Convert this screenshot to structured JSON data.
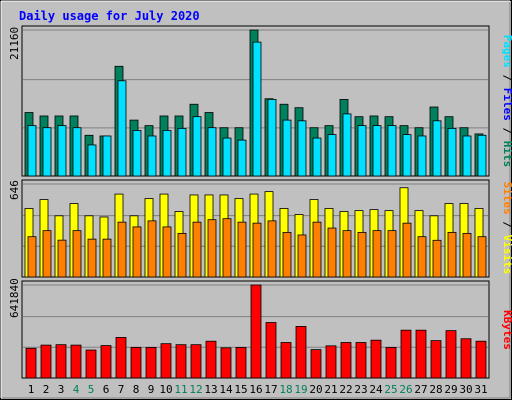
{
  "title": "Daily usage for July 2020",
  "colors": {
    "background": "#c0c0c0",
    "hits": "#00805c",
    "files": "#00e0ff",
    "visits": "#ffff00",
    "sites": "#ff8000",
    "kbytes": "#ff0000",
    "title": "#0000ff",
    "weekend_label": "#00805c"
  },
  "chart_data": [
    {
      "type": "bar",
      "panel": "top",
      "ylabel_parts": [
        "Pages",
        "Files",
        "Hits"
      ],
      "ymax_label": "21160",
      "ylim": [
        0,
        21160
      ],
      "categories": [
        "1",
        "2",
        "3",
        "4",
        "5",
        "6",
        "7",
        "8",
        "9",
        "10",
        "11",
        "12",
        "13",
        "14",
        "15",
        "16",
        "17",
        "18",
        "19",
        "20",
        "21",
        "22",
        "23",
        "24",
        "25",
        "26",
        "27",
        "28",
        "29",
        "30",
        "31"
      ],
      "series": [
        {
          "name": "Hits",
          "values": [
            9200,
            8700,
            8700,
            8700,
            5900,
            5800,
            15900,
            8100,
            7300,
            8700,
            8700,
            10400,
            9200,
            7000,
            7000,
            21160,
            11200,
            10400,
            9900,
            7000,
            7300,
            11100,
            8600,
            8700,
            8600,
            7300,
            7000,
            10000,
            8600,
            7000,
            6100
          ]
        },
        {
          "name": "Files",
          "values": [
            7300,
            7000,
            7300,
            7000,
            4500,
            5800,
            13800,
            6600,
            5800,
            6600,
            6900,
            8600,
            7000,
            5500,
            5200,
            19400,
            11100,
            8100,
            8000,
            5500,
            6000,
            9000,
            7300,
            7300,
            7300,
            6000,
            5800,
            8000,
            6900,
            5800,
            5900
          ]
        },
        {
          "name": "Pages",
          "values": [
            0,
            0,
            0,
            0,
            0,
            0,
            0,
            0,
            0,
            0,
            0,
            0,
            0,
            0,
            0,
            0,
            0,
            0,
            0,
            0,
            0,
            0,
            0,
            0,
            0,
            0,
            0,
            0,
            0,
            0,
            0
          ]
        }
      ]
    },
    {
      "type": "bar",
      "panel": "middle",
      "ylabel_parts": [
        "Sites",
        "Visits"
      ],
      "ymax_label": "646",
      "ylim": [
        0,
        646
      ],
      "categories": [
        "1",
        "2",
        "3",
        "4",
        "5",
        "6",
        "7",
        "8",
        "9",
        "10",
        "11",
        "12",
        "13",
        "14",
        "15",
        "16",
        "17",
        "18",
        "19",
        "20",
        "21",
        "22",
        "23",
        "24",
        "25",
        "26",
        "27",
        "28",
        "29",
        "30",
        "31"
      ],
      "series": [
        {
          "name": "Visits",
          "values": [
            476,
            538,
            425,
            510,
            425,
            417,
            576,
            425,
            545,
            576,
            455,
            570,
            570,
            570,
            545,
            576,
            593,
            476,
            434,
            538,
            476,
            455,
            461,
            468,
            461,
            620,
            461,
            425,
            510,
            510,
            476
          ]
        },
        {
          "name": "Sites",
          "values": [
            280,
            322,
            256,
            322,
            263,
            263,
            381,
            348,
            390,
            348,
            303,
            381,
            398,
            405,
            381,
            374,
            390,
            310,
            292,
            381,
            340,
            322,
            310,
            322,
            322,
            374,
            280,
            255,
            310,
            303,
            280
          ]
        }
      ]
    },
    {
      "type": "bar",
      "panel": "bottom",
      "ylabel_parts": [
        "KBytes"
      ],
      "ymax_label": "641840",
      "ylim": [
        0,
        641840
      ],
      "categories": [
        "1",
        "2",
        "3",
        "4",
        "5",
        "6",
        "7",
        "8",
        "9",
        "10",
        "11",
        "12",
        "13",
        "14",
        "15",
        "16",
        "17",
        "18",
        "19",
        "20",
        "21",
        "22",
        "23",
        "24",
        "25",
        "26",
        "27",
        "28",
        "29",
        "30",
        "31"
      ],
      "series": [
        {
          "name": "KBytes",
          "values": [
            205000,
            227000,
            230000,
            227000,
            193000,
            224000,
            280000,
            211000,
            211000,
            237000,
            230000,
            230000,
            254000,
            208000,
            211000,
            641840,
            383000,
            245000,
            356000,
            196000,
            222000,
            245000,
            245000,
            261000,
            211000,
            330000,
            330000,
            258000,
            327000,
            271000,
            254000
          ]
        }
      ]
    }
  ],
  "weekend_days": [
    4,
    5,
    11,
    12,
    18,
    19,
    25,
    26
  ]
}
